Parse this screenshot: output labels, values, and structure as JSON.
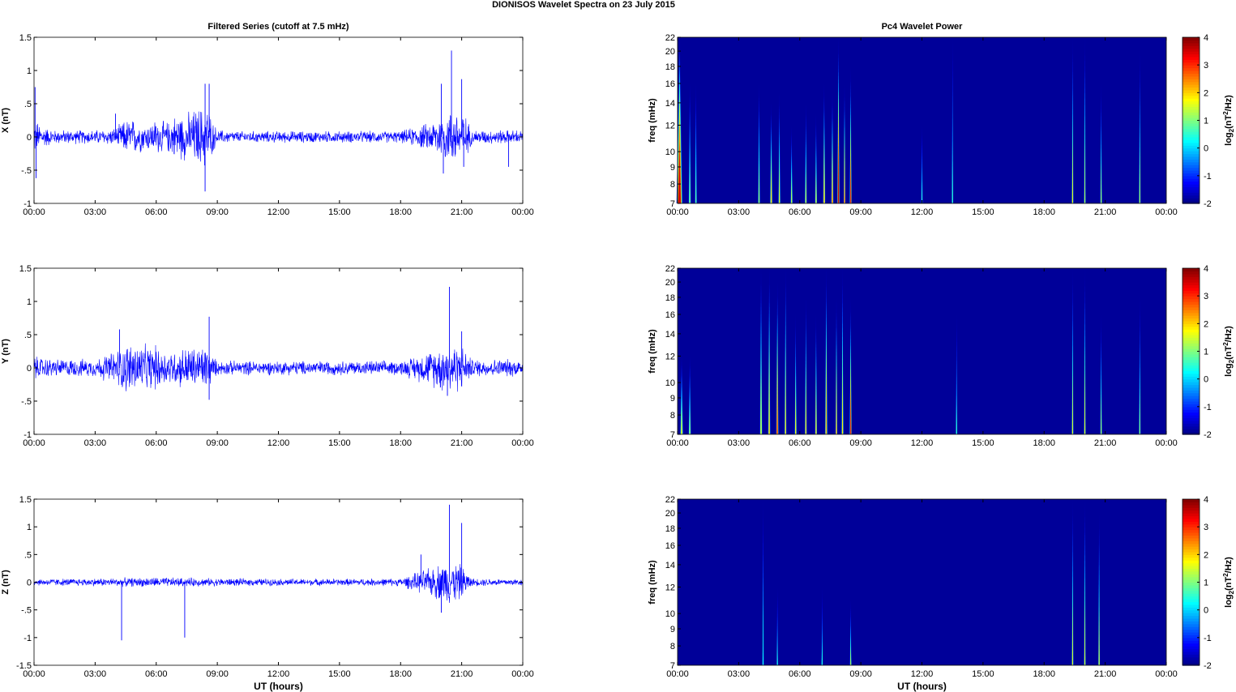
{
  "figure_title": "DIONISOS Wavelet Spectra on 23 July      2015",
  "chart_data": [
    {
      "type": "line",
      "title": "Filtered Series (cutoff at 7.5 mHz)",
      "ylabel": "X (nT)",
      "xlabel": "",
      "xlim": [
        0,
        24
      ],
      "ylim": [
        -1,
        1.5
      ],
      "yticks": [
        -1,
        -0.5,
        0,
        0.5,
        1,
        1.5
      ],
      "xticklabels": [
        "00:00",
        "03:00",
        "06:00",
        "09:00",
        "12:00",
        "15:00",
        "18:00",
        "21:00",
        "00:00"
      ],
      "color": "#0000ff",
      "grid": false,
      "envelope": [
        [
          0,
          0.3
        ],
        [
          0.5,
          0.18
        ],
        [
          1,
          0.12
        ],
        [
          2,
          0.12
        ],
        [
          3,
          0.12
        ],
        [
          4,
          0.15
        ],
        [
          4.5,
          0.3
        ],
        [
          5,
          0.3
        ],
        [
          5.5,
          0.22
        ],
        [
          6,
          0.3
        ],
        [
          6.5,
          0.25
        ],
        [
          7,
          0.4
        ],
        [
          7.5,
          0.4
        ],
        [
          8,
          0.5
        ],
        [
          8.5,
          0.55
        ],
        [
          8.8,
          0.25
        ],
        [
          9,
          0.12
        ],
        [
          10,
          0.1
        ],
        [
          12,
          0.1
        ],
        [
          15,
          0.1
        ],
        [
          18,
          0.1
        ],
        [
          19.5,
          0.25
        ],
        [
          20,
          0.4
        ],
        [
          20.5,
          0.45
        ],
        [
          21,
          0.5
        ],
        [
          21.5,
          0.12
        ],
        [
          23,
          0.12
        ],
        [
          24,
          0.12
        ]
      ],
      "spikes": [
        [
          0.05,
          0.75
        ],
        [
          0.1,
          -0.62
        ],
        [
          4.0,
          0.35
        ],
        [
          8.4,
          -0.82
        ],
        [
          8.6,
          0.8
        ],
        [
          8.4,
          0.8
        ],
        [
          20.0,
          0.8
        ],
        [
          20.1,
          -0.55
        ],
        [
          20.5,
          1.3
        ],
        [
          21.0,
          0.87
        ],
        [
          21.1,
          -0.45
        ],
        [
          23.3,
          -0.45
        ]
      ]
    },
    {
      "type": "line",
      "ylabel": "Y (nT)",
      "xlabel": "",
      "xlim": [
        0,
        24
      ],
      "ylim": [
        -1,
        1.5
      ],
      "yticks": [
        -1,
        -0.5,
        0,
        0.5,
        1,
        1.5
      ],
      "xticklabels": [
        "00:00",
        "03:00",
        "06:00",
        "09:00",
        "12:00",
        "15:00",
        "18:00",
        "21:00",
        "00:00"
      ],
      "color": "#0000ff",
      "grid": false,
      "envelope": [
        [
          0,
          0.2
        ],
        [
          1,
          0.15
        ],
        [
          2,
          0.15
        ],
        [
          3,
          0.15
        ],
        [
          4,
          0.3
        ],
        [
          4.5,
          0.42
        ],
        [
          5,
          0.45
        ],
        [
          5.5,
          0.38
        ],
        [
          6,
          0.38
        ],
        [
          6.5,
          0.3
        ],
        [
          7,
          0.3
        ],
        [
          7.5,
          0.38
        ],
        [
          8,
          0.35
        ],
        [
          8.5,
          0.4
        ],
        [
          8.8,
          0.2
        ],
        [
          9,
          0.12
        ],
        [
          12,
          0.12
        ],
        [
          15,
          0.12
        ],
        [
          18,
          0.12
        ],
        [
          19.5,
          0.3
        ],
        [
          20,
          0.4
        ],
        [
          20.5,
          0.45
        ],
        [
          21,
          0.38
        ],
        [
          21.5,
          0.15
        ],
        [
          24,
          0.15
        ]
      ],
      "spikes": [
        [
          4.2,
          0.58
        ],
        [
          8.6,
          0.77
        ],
        [
          8.6,
          -0.48
        ],
        [
          20.4,
          1.22
        ],
        [
          20.3,
          -0.42
        ],
        [
          21.0,
          0.55
        ]
      ]
    },
    {
      "type": "line",
      "ylabel": "Z (nT)",
      "xlabel": "UT (hours)",
      "xlim": [
        0,
        24
      ],
      "ylim": [
        -1.5,
        1.5
      ],
      "yticks": [
        -1.5,
        -1,
        -0.5,
        0,
        0.5,
        1,
        1.5
      ],
      "xticklabels": [
        "00:00",
        "03:00",
        "06:00",
        "09:00",
        "12:00",
        "15:00",
        "18:00",
        "21:00",
        "00:00"
      ],
      "color": "#0000ff",
      "grid": false,
      "envelope": [
        [
          0,
          0.07
        ],
        [
          3,
          0.08
        ],
        [
          6,
          0.1
        ],
        [
          9,
          0.08
        ],
        [
          12,
          0.07
        ],
        [
          15,
          0.07
        ],
        [
          18,
          0.08
        ],
        [
          19.5,
          0.3
        ],
        [
          20,
          0.4
        ],
        [
          20.5,
          0.45
        ],
        [
          21,
          0.35
        ],
        [
          21.5,
          0.08
        ],
        [
          24,
          0.07
        ]
      ],
      "spikes": [
        [
          4.3,
          -1.05
        ],
        [
          7.4,
          -1.0
        ],
        [
          20.4,
          1.4
        ],
        [
          20.0,
          -0.55
        ],
        [
          21.0,
          1.07
        ],
        [
          19.0,
          0.5
        ]
      ]
    },
    {
      "type": "heatmap",
      "title": "Pc4 Wavelet Power",
      "ylabel": "freq (mHz)",
      "xlabel": "",
      "xlim": [
        0,
        24
      ],
      "ylim": [
        7,
        22
      ],
      "yscale": "log",
      "yticks": [
        7,
        8,
        9,
        10,
        12,
        14,
        16,
        18,
        20,
        22
      ],
      "xticklabels": [
        "00:00",
        "03:00",
        "06:00",
        "09:00",
        "12:00",
        "15:00",
        "18:00",
        "21:00",
        "00:00"
      ],
      "colormap": "jet",
      "clim": [
        -2,
        4
      ],
      "colorbar_label": "log2(nT2/Hz)",
      "colorbar_ticks": [
        -2,
        -1,
        0,
        1,
        2,
        3,
        4
      ],
      "streaks": [
        [
          0.1,
          22,
          3.5,
          0.3
        ],
        [
          0.6,
          16,
          1.0,
          0.12
        ],
        [
          0.9,
          16,
          0.8,
          0.1
        ],
        [
          4.0,
          16,
          1.2,
          0.1
        ],
        [
          4.6,
          14,
          2.0,
          0.12
        ],
        [
          5.0,
          15,
          1.6,
          0.1
        ],
        [
          5.6,
          12,
          1.4,
          0.1
        ],
        [
          6.3,
          14,
          1.5,
          0.1
        ],
        [
          6.8,
          13,
          1.6,
          0.1
        ],
        [
          7.2,
          16,
          2.2,
          0.12
        ],
        [
          7.6,
          15,
          2.6,
          0.12
        ],
        [
          7.9,
          22,
          3.5,
          0.12
        ],
        [
          8.2,
          16,
          2.8,
          0.1
        ],
        [
          8.5,
          18,
          3.0,
          0.1
        ],
        [
          12.0,
          12,
          0.5,
          0.08
        ],
        [
          13.5,
          22,
          0.5,
          0.06
        ],
        [
          19.4,
          22,
          1.6,
          0.08
        ],
        [
          20.0,
          22,
          1.3,
          0.08
        ],
        [
          20.8,
          16,
          1.2,
          0.08
        ],
        [
          22.7,
          20,
          1.2,
          0.08
        ]
      ]
    },
    {
      "type": "heatmap",
      "ylabel": "freq (mHz)",
      "xlabel": "",
      "xlim": [
        0,
        24
      ],
      "ylim": [
        7,
        22
      ],
      "yscale": "log",
      "yticks": [
        7,
        8,
        9,
        10,
        12,
        14,
        16,
        18,
        20,
        22
      ],
      "xticklabels": [
        "00:00",
        "03:00",
        "06:00",
        "09:00",
        "12:00",
        "15:00",
        "18:00",
        "21:00",
        "00:00"
      ],
      "colormap": "jet",
      "clim": [
        -2,
        4
      ],
      "colorbar_label": "log2(nT2/Hz)",
      "colorbar_ticks": [
        -2,
        -1,
        0,
        1,
        2,
        3,
        4
      ],
      "streaks": [
        [
          0.2,
          12,
          1.6,
          0.15
        ],
        [
          0.6,
          12,
          1.2,
          0.12
        ],
        [
          4.1,
          22,
          1.6,
          0.12
        ],
        [
          4.5,
          22,
          2.2,
          0.12
        ],
        [
          4.9,
          20,
          3.0,
          0.12
        ],
        [
          5.3,
          22,
          2.0,
          0.1
        ],
        [
          5.8,
          16,
          1.8,
          0.1
        ],
        [
          6.3,
          18,
          2.0,
          0.1
        ],
        [
          6.8,
          16,
          2.0,
          0.1
        ],
        [
          7.3,
          22,
          2.2,
          0.12
        ],
        [
          7.8,
          18,
          2.4,
          0.1
        ],
        [
          8.1,
          22,
          1.8,
          0.1
        ],
        [
          8.5,
          18,
          3.0,
          0.1
        ],
        [
          13.7,
          16,
          0.5,
          0.06
        ],
        [
          19.4,
          22,
          1.5,
          0.08
        ],
        [
          20.0,
          22,
          1.6,
          0.08
        ],
        [
          20.8,
          16,
          1.2,
          0.08
        ],
        [
          22.7,
          18,
          1.0,
          0.08
        ]
      ]
    },
    {
      "type": "heatmap",
      "ylabel": "freq (mHz)",
      "xlabel": "UT (hours)",
      "xlim": [
        0,
        24
      ],
      "ylim": [
        7,
        22
      ],
      "yscale": "log",
      "yticks": [
        7,
        8,
        9,
        10,
        12,
        14,
        16,
        18,
        20,
        22
      ],
      "xticklabels": [
        "00:00",
        "03:00",
        "06:00",
        "09:00",
        "12:00",
        "15:00",
        "18:00",
        "21:00",
        "00:00"
      ],
      "colormap": "jet",
      "clim": [
        -2,
        4
      ],
      "colorbar_label": "log2(nT2/Hz)",
      "colorbar_ticks": [
        -2,
        -1,
        0,
        1,
        2,
        3,
        4
      ],
      "streaks": [
        [
          4.2,
          22,
          0.3,
          0.06
        ],
        [
          4.9,
          12,
          0.4,
          0.06
        ],
        [
          7.1,
          12,
          0.4,
          0.06
        ],
        [
          8.5,
          11,
          1.2,
          0.08
        ],
        [
          19.4,
          22,
          1.5,
          0.08
        ],
        [
          20.0,
          22,
          1.5,
          0.08
        ],
        [
          20.7,
          20,
          1.5,
          0.08
        ]
      ]
    }
  ]
}
